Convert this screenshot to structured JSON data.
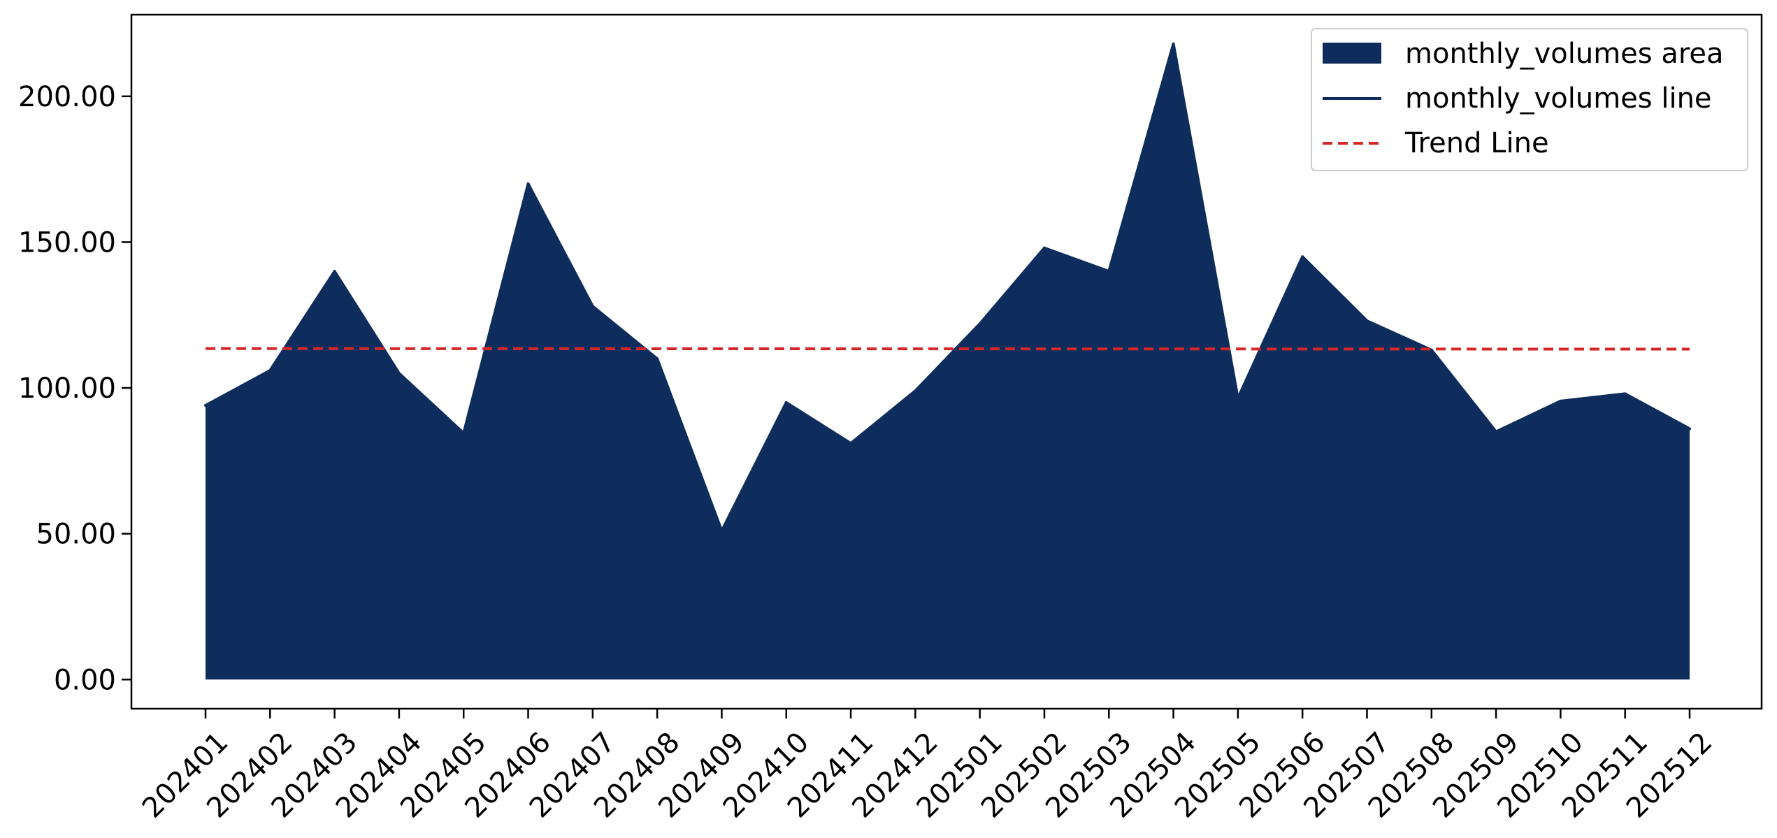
{
  "chart_data": {
    "type": "area",
    "title": "",
    "xlabel": "",
    "ylabel": "",
    "categories": [
      "202401",
      "202402",
      "202403",
      "202404",
      "202405",
      "202406",
      "202407",
      "202408",
      "202409",
      "202410",
      "202411",
      "202412",
      "202501",
      "202502",
      "202503",
      "202504",
      "202505",
      "202506",
      "202507",
      "202508",
      "202509",
      "202510",
      "202511",
      "202512"
    ],
    "series": [
      {
        "name": "monthly_volumes",
        "values": [
          94,
          106,
          140,
          105,
          84.5,
          170,
          128,
          110,
          51,
          95,
          81,
          99,
          122,
          148,
          140,
          218,
          96.5,
          145,
          123,
          113,
          85,
          95.5,
          98,
          86
        ]
      }
    ],
    "trend": {
      "name": "Trend Line",
      "start": 113.5,
      "end": 113.3
    },
    "ylim": [
      -10,
      228
    ],
    "yticks": [
      0,
      50,
      100,
      150,
      200
    ],
    "ytick_labels": [
      "0.00",
      "50.00",
      "100.00",
      "150.00",
      "200.00"
    ],
    "legend": {
      "placement": "top-right",
      "entries": [
        "monthly_volumes area",
        "monthly_volumes line",
        "Trend Line"
      ]
    },
    "grid": false,
    "colors": {
      "area": "#0f2d5c",
      "line": "#0f2d5c",
      "trend": "#d62728"
    }
  }
}
